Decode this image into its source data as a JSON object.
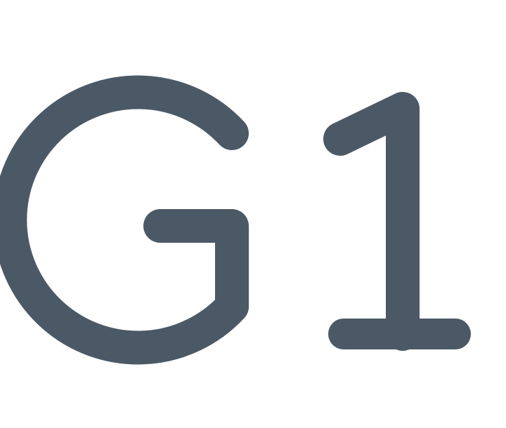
{
  "logo": {
    "text": "G1",
    "color": "#4b5966"
  },
  "background": "#ffffff"
}
